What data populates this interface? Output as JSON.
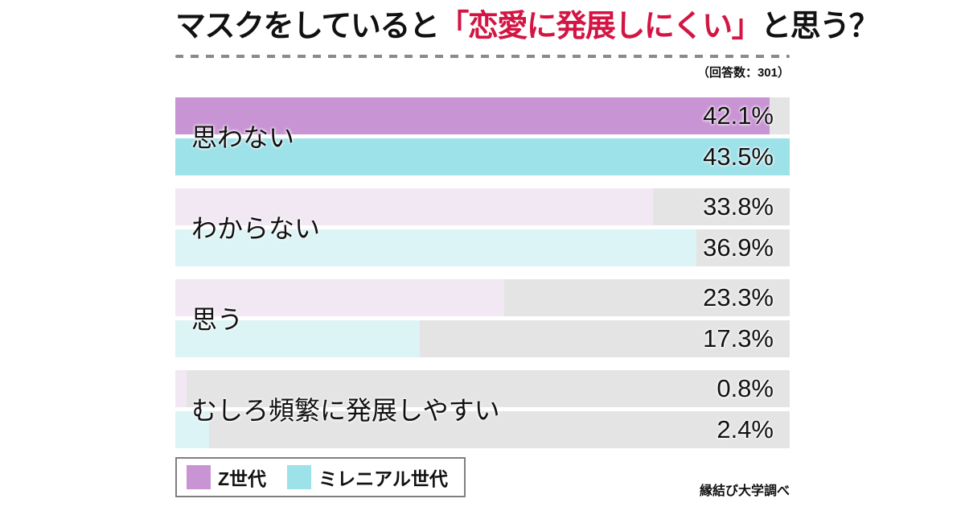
{
  "header": {
    "title_pre": "マスクをしていると",
    "title_highlight": "「恋愛に発展しにくい」",
    "title_post": "と思う？",
    "respondents_note": "（回答数：301）"
  },
  "footer": {
    "source_note": "縁結び大学調べ"
  },
  "legend": {
    "items": [
      {
        "label": "Z世代",
        "color": "#c994d4"
      },
      {
        "label": "ミレニアル世代",
        "color": "#9de1e9"
      }
    ]
  },
  "colors": {
    "title_highlight": "#d31543",
    "z_emphasis": "#c994d4",
    "z_muted": "#f2e8f4",
    "mil_emphasis": "#9de1e9",
    "mil_muted": "#dcf4f6",
    "track": "#e5e4e4",
    "dash": "#8a8a8a"
  },
  "chart_data": {
    "type": "bar",
    "orientation": "horizontal",
    "title": "マスクをしていると「恋愛に発展しにくい」と思う？",
    "respondents": 301,
    "unit": "%",
    "scale_max": 43.5,
    "legend_position": "bottom-left",
    "emphasized_category_index": 0,
    "categories": [
      "思わない",
      "わからない",
      "思う",
      "むしろ頻繁に発展しやすい"
    ],
    "series": [
      {
        "name": "Z世代",
        "values": [
          42.1,
          33.8,
          23.3,
          0.8
        ]
      },
      {
        "name": "ミレニアル世代",
        "values": [
          43.5,
          36.9,
          17.3,
          2.4
        ]
      }
    ],
    "value_labels": [
      [
        "42.1%",
        "43.5%"
      ],
      [
        "33.8%",
        "36.9%"
      ],
      [
        "23.3%",
        "17.3%"
      ],
      [
        "0.8%",
        "2.4%"
      ]
    ]
  }
}
